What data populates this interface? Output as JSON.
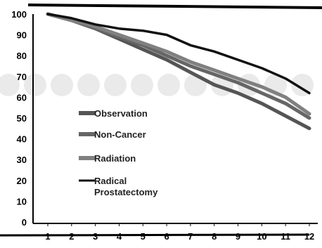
{
  "chart_data": {
    "type": "line",
    "title": "",
    "xlabel": "",
    "ylabel": "",
    "x": [
      1,
      2,
      3,
      4,
      5,
      6,
      7,
      8,
      9,
      10,
      11,
      12
    ],
    "xticks": [
      "1",
      "2",
      "3",
      "4",
      "5",
      "6",
      "7",
      "8",
      "9",
      "10",
      "11",
      "12"
    ],
    "yticks": [
      "0",
      "10",
      "20",
      "30",
      "40",
      "50",
      "60",
      "70",
      "80",
      "90",
      "100"
    ],
    "ylim": [
      0,
      100
    ],
    "grid": false,
    "legend_position": "lower-left",
    "series": [
      {
        "name": "Observation",
        "color": "#555555",
        "values": [
          100,
          97,
          93,
          88,
          83,
          78,
          72,
          66,
          62,
          57,
          51,
          45
        ]
      },
      {
        "name": "Non-Cancer",
        "color": "#666666",
        "values": [
          100,
          97,
          93,
          89,
          85,
          80,
          75,
          71,
          67,
          62,
          57,
          50
        ]
      },
      {
        "name": "Radiation",
        "color": "#808080",
        "values": [
          100,
          97,
          94,
          90,
          86,
          82,
          77,
          73,
          69,
          65,
          60,
          52
        ]
      },
      {
        "name": "Radical\nProstatectomy",
        "label_lines": [
          "Radical",
          "Prostatectomy"
        ],
        "color": "#111111",
        "values": [
          100,
          98,
          95,
          93,
          92,
          90,
          85,
          82,
          78,
          74,
          69,
          62
        ]
      }
    ]
  }
}
